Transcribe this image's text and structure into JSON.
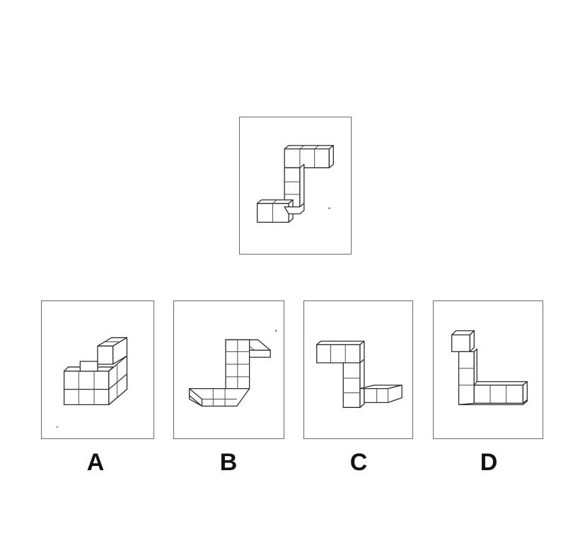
{
  "question": {
    "panel_name": "reference-figure"
  },
  "options": [
    {
      "label": "A"
    },
    {
      "label": "B"
    },
    {
      "label": "C"
    },
    {
      "label": "D"
    }
  ]
}
